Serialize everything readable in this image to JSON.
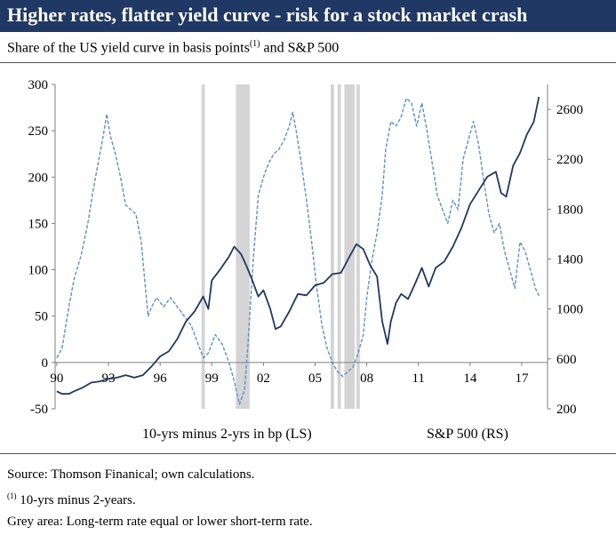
{
  "header": {
    "title": "Higher rates, flatter yield curve - risk for a stock market crash",
    "subtitle_main": "Share of the US yield curve in basis points",
    "subtitle_note_mark": "(1)",
    "subtitle_tail": " and S&P 500"
  },
  "chart_data": {
    "type": "line",
    "x_ticks": [
      "90",
      "93",
      "96",
      "99",
      "02",
      "05",
      "08",
      "11",
      "14",
      "17"
    ],
    "x_tick_years": [
      1990,
      1993,
      1996,
      1999,
      2002,
      2005,
      2008,
      2011,
      2014,
      2017
    ],
    "xlim": [
      1989.9,
      2018.5
    ],
    "y_left": {
      "ticks": [
        "300",
        "250",
        "200",
        "150",
        "100",
        "50",
        "0",
        "-50"
      ],
      "ylim": [
        -50,
        300
      ]
    },
    "y_right": {
      "ticks": [
        "2600",
        "2200",
        "1800",
        "1400",
        "1000",
        "600",
        "200"
      ],
      "ylim": [
        200,
        2800
      ]
    },
    "grid": false,
    "legend_placement": "bottom",
    "shaded_periods": [
      [
        1998.4,
        1998.6
      ],
      [
        2000.4,
        2001.2
      ],
      [
        2005.9,
        2006.1
      ],
      [
        2006.3,
        2006.5
      ],
      [
        2006.7,
        2007.3
      ],
      [
        2007.4,
        2007.6
      ]
    ],
    "series": [
      {
        "name": "10-yrs minus 2-yrs in bp (LS)",
        "axis": "left",
        "color": "#5b8fd4",
        "style": "dashed",
        "points": [
          [
            1990.0,
            5
          ],
          [
            1990.3,
            15
          ],
          [
            1990.7,
            60
          ],
          [
            1991.0,
            90
          ],
          [
            1991.4,
            115
          ],
          [
            1991.8,
            150
          ],
          [
            1992.1,
            185
          ],
          [
            1992.4,
            215
          ],
          [
            1992.7,
            245
          ],
          [
            1992.9,
            268
          ],
          [
            1993.1,
            245
          ],
          [
            1993.4,
            225
          ],
          [
            1993.7,
            200
          ],
          [
            1994.0,
            170
          ],
          [
            1994.3,
            165
          ],
          [
            1994.6,
            160
          ],
          [
            1994.9,
            130
          ],
          [
            1995.1,
            90
          ],
          [
            1995.3,
            50
          ],
          [
            1995.5,
            60
          ],
          [
            1995.8,
            70
          ],
          [
            1996.2,
            60
          ],
          [
            1996.6,
            70
          ],
          [
            1997.0,
            60
          ],
          [
            1997.4,
            50
          ],
          [
            1997.8,
            40
          ],
          [
            1998.2,
            20
          ],
          [
            1998.5,
            5
          ],
          [
            1998.8,
            10
          ],
          [
            1999.2,
            30
          ],
          [
            1999.6,
            20
          ],
          [
            2000.0,
            0
          ],
          [
            2000.3,
            -20
          ],
          [
            2000.6,
            -45
          ],
          [
            2000.9,
            -30
          ],
          [
            2001.1,
            20
          ],
          [
            2001.4,
            110
          ],
          [
            2001.7,
            180
          ],
          [
            2002.0,
            200
          ],
          [
            2002.3,
            215
          ],
          [
            2002.6,
            225
          ],
          [
            2002.9,
            230
          ],
          [
            2003.2,
            240
          ],
          [
            2003.5,
            255
          ],
          [
            2003.7,
            270
          ],
          [
            2003.9,
            250
          ],
          [
            2004.2,
            215
          ],
          [
            2004.5,
            175
          ],
          [
            2004.8,
            130
          ],
          [
            2005.1,
            80
          ],
          [
            2005.4,
            40
          ],
          [
            2005.7,
            15
          ],
          [
            2006.0,
            0
          ],
          [
            2006.3,
            -10
          ],
          [
            2006.6,
            -15
          ],
          [
            2006.9,
            -10
          ],
          [
            2007.2,
            -5
          ],
          [
            2007.5,
            10
          ],
          [
            2007.8,
            30
          ],
          [
            2008.0,
            70
          ],
          [
            2008.3,
            110
          ],
          [
            2008.6,
            140
          ],
          [
            2008.9,
            180
          ],
          [
            2009.1,
            230
          ],
          [
            2009.4,
            260
          ],
          [
            2009.7,
            255
          ],
          [
            2010.0,
            265
          ],
          [
            2010.3,
            285
          ],
          [
            2010.6,
            280
          ],
          [
            2010.9,
            255
          ],
          [
            2011.2,
            280
          ],
          [
            2011.5,
            250
          ],
          [
            2011.8,
            215
          ],
          [
            2012.1,
            180
          ],
          [
            2012.4,
            165
          ],
          [
            2012.7,
            150
          ],
          [
            2013.0,
            175
          ],
          [
            2013.3,
            165
          ],
          [
            2013.6,
            220
          ],
          [
            2013.9,
            240
          ],
          [
            2014.2,
            260
          ],
          [
            2014.5,
            235
          ],
          [
            2014.8,
            195
          ],
          [
            2015.1,
            160
          ],
          [
            2015.4,
            140
          ],
          [
            2015.7,
            150
          ],
          [
            2016.0,
            120
          ],
          [
            2016.3,
            100
          ],
          [
            2016.6,
            80
          ],
          [
            2016.9,
            130
          ],
          [
            2017.2,
            120
          ],
          [
            2017.5,
            100
          ],
          [
            2017.8,
            80
          ],
          [
            2018.0,
            72
          ]
        ]
      },
      {
        "name": "S&P 500 (RS)",
        "axis": "right",
        "color": "#1f3864",
        "style": "solid",
        "points": [
          [
            1990.0,
            340
          ],
          [
            1990.3,
            320
          ],
          [
            1990.7,
            320
          ],
          [
            1991.0,
            340
          ],
          [
            1991.5,
            370
          ],
          [
            1992.0,
            410
          ],
          [
            1992.5,
            420
          ],
          [
            1993.0,
            440
          ],
          [
            1993.5,
            450
          ],
          [
            1994.0,
            470
          ],
          [
            1994.5,
            450
          ],
          [
            1995.0,
            470
          ],
          [
            1995.5,
            540
          ],
          [
            1996.0,
            620
          ],
          [
            1996.5,
            660
          ],
          [
            1997.0,
            760
          ],
          [
            1997.5,
            900
          ],
          [
            1998.0,
            980
          ],
          [
            1998.5,
            1100
          ],
          [
            1998.8,
            1000
          ],
          [
            1999.0,
            1230
          ],
          [
            1999.5,
            1320
          ],
          [
            2000.0,
            1420
          ],
          [
            2000.3,
            1500
          ],
          [
            2000.7,
            1440
          ],
          [
            2001.0,
            1350
          ],
          [
            2001.3,
            1250
          ],
          [
            2001.7,
            1100
          ],
          [
            2002.0,
            1150
          ],
          [
            2002.4,
            1000
          ],
          [
            2002.7,
            840
          ],
          [
            2003.0,
            860
          ],
          [
            2003.5,
            980
          ],
          [
            2004.0,
            1120
          ],
          [
            2004.5,
            1110
          ],
          [
            2005.0,
            1190
          ],
          [
            2005.5,
            1210
          ],
          [
            2006.0,
            1280
          ],
          [
            2006.5,
            1290
          ],
          [
            2007.0,
            1420
          ],
          [
            2007.4,
            1520
          ],
          [
            2007.8,
            1480
          ],
          [
            2008.2,
            1350
          ],
          [
            2008.6,
            1260
          ],
          [
            2008.9,
            900
          ],
          [
            2009.2,
            720
          ],
          [
            2009.4,
            900
          ],
          [
            2009.7,
            1050
          ],
          [
            2010.0,
            1120
          ],
          [
            2010.4,
            1080
          ],
          [
            2010.8,
            1200
          ],
          [
            2011.2,
            1330
          ],
          [
            2011.6,
            1180
          ],
          [
            2012.0,
            1330
          ],
          [
            2012.5,
            1380
          ],
          [
            2013.0,
            1500
          ],
          [
            2013.5,
            1650
          ],
          [
            2014.0,
            1840
          ],
          [
            2014.5,
            1950
          ],
          [
            2015.0,
            2060
          ],
          [
            2015.5,
            2100
          ],
          [
            2015.8,
            1930
          ],
          [
            2016.1,
            1900
          ],
          [
            2016.5,
            2150
          ],
          [
            2016.9,
            2250
          ],
          [
            2017.3,
            2400
          ],
          [
            2017.7,
            2500
          ],
          [
            2018.0,
            2700
          ]
        ]
      }
    ]
  },
  "footnotes": {
    "source": "Source: Thomson Finanical; own calculations.",
    "note_mark": "(1)",
    "note_text": " 10-yrs minus 2-years.",
    "grey_area": "Grey area: Long-term rate equal or lower short-term rate."
  }
}
